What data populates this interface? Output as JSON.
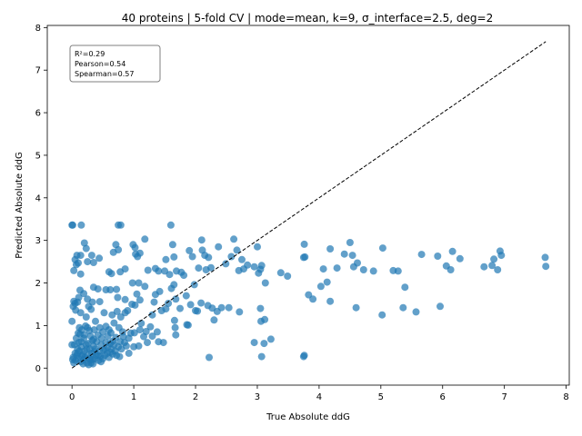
{
  "chart_data": {
    "type": "scatter",
    "title": "40 proteins | 5-fold CV | mode=mean, k=9, σ_interface=2.5, deg=2",
    "xlabel": "True Absolute ddG",
    "ylabel": "Predicted Absolute ddG",
    "xlim": [
      -0.4,
      8.05
    ],
    "ylim": [
      -0.4,
      8.05
    ],
    "xticks": [
      "0",
      "1",
      "2",
      "3",
      "4",
      "5",
      "6",
      "7",
      "8"
    ],
    "yticks": [
      "0",
      "1",
      "2",
      "3",
      "4",
      "5",
      "6",
      "7",
      "8"
    ],
    "stats": {
      "r2": "R²=0.29",
      "pearson": "Pearson=0.54",
      "spearman": "Spearman=0.57"
    },
    "stats_box_position": "top-left",
    "identity_line": {
      "from": [
        0,
        0
      ],
      "to": [
        7.67,
        7.67
      ],
      "style": "dashed"
    },
    "point_color": "#1f77b4",
    "points": [
      [
        0.0,
        3.36
      ],
      [
        0.01,
        3.36
      ],
      [
        0.15,
        3.36
      ],
      [
        0.75,
        3.36
      ],
      [
        0.79,
        3.36
      ],
      [
        1.6,
        3.36
      ],
      [
        0.14,
        2.65
      ],
      [
        0.08,
        2.65
      ],
      [
        0.05,
        2.55
      ],
      [
        0.07,
        2.43
      ],
      [
        0.1,
        2.47
      ],
      [
        0.03,
        2.29
      ],
      [
        0.14,
        2.21
      ],
      [
        0.2,
        2.94
      ],
      [
        0.23,
        2.81
      ],
      [
        0.25,
        2.5
      ],
      [
        0.32,
        2.65
      ],
      [
        0.35,
        2.48
      ],
      [
        0.44,
        2.58
      ],
      [
        0.6,
        2.26
      ],
      [
        0.64,
        2.22
      ],
      [
        0.67,
        2.72
      ],
      [
        0.71,
        2.9
      ],
      [
        0.75,
        2.78
      ],
      [
        0.78,
        2.26
      ],
      [
        0.86,
        2.33
      ],
      [
        0.99,
        2.9
      ],
      [
        1.02,
        2.83
      ],
      [
        1.03,
        2.68
      ],
      [
        1.06,
        2.62
      ],
      [
        1.1,
        2.7
      ],
      [
        1.18,
        3.03
      ],
      [
        1.23,
        2.3
      ],
      [
        1.35,
        2.34
      ],
      [
        1.4,
        2.28
      ],
      [
        1.5,
        2.28
      ],
      [
        1.52,
        2.55
      ],
      [
        1.58,
        2.2
      ],
      [
        1.63,
        2.9
      ],
      [
        1.65,
        2.61
      ],
      [
        1.69,
        2.28
      ],
      [
        1.77,
        2.25
      ],
      [
        1.81,
        2.18
      ],
      [
        1.9,
        2.76
      ],
      [
        1.95,
        2.62
      ],
      [
        2.05,
        2.35
      ],
      [
        2.1,
        3.01
      ],
      [
        2.11,
        2.77
      ],
      [
        2.15,
        2.65
      ],
      [
        2.17,
        2.31
      ],
      [
        2.21,
        2.6
      ],
      [
        2.25,
        2.36
      ],
      [
        2.37,
        2.85
      ],
      [
        2.49,
        2.45
      ],
      [
        2.58,
        2.62
      ],
      [
        2.62,
        3.03
      ],
      [
        2.67,
        2.77
      ],
      [
        2.7,
        2.29
      ],
      [
        2.75,
        2.55
      ],
      [
        2.78,
        2.33
      ],
      [
        2.84,
        2.42
      ],
      [
        2.95,
        2.38
      ],
      [
        3.0,
        2.85
      ],
      [
        3.02,
        2.23
      ],
      [
        3.05,
        2.32
      ],
      [
        3.07,
        2.41
      ],
      [
        3.13,
        2.0
      ],
      [
        3.38,
        2.24
      ],
      [
        3.49,
        2.16
      ],
      [
        3.76,
        2.91
      ],
      [
        3.77,
        2.61
      ],
      [
        4.07,
        2.33
      ],
      [
        4.18,
        2.8
      ],
      [
        4.29,
        2.35
      ],
      [
        4.41,
        2.68
      ],
      [
        4.5,
        2.95
      ],
      [
        4.54,
        2.65
      ],
      [
        4.56,
        2.38
      ],
      [
        4.62,
        2.47
      ],
      [
        4.72,
        2.31
      ],
      [
        4.88,
        2.28
      ],
      [
        5.03,
        2.82
      ],
      [
        5.2,
        2.29
      ],
      [
        5.28,
        2.28
      ],
      [
        5.66,
        2.67
      ],
      [
        5.92,
        2.63
      ],
      [
        6.06,
        2.4
      ],
      [
        6.13,
        2.31
      ],
      [
        6.16,
        2.74
      ],
      [
        6.28,
        2.57
      ],
      [
        6.67,
        2.38
      ],
      [
        6.8,
        2.41
      ],
      [
        6.83,
        2.56
      ],
      [
        6.89,
        2.31
      ],
      [
        6.93,
        2.75
      ],
      [
        6.95,
        2.65
      ],
      [
        7.66,
        2.6
      ],
      [
        7.67,
        2.39
      ],
      [
        3.75,
        2.6
      ],
      [
        3.83,
        1.72
      ],
      [
        3.9,
        1.62
      ],
      [
        4.03,
        1.92
      ],
      [
        4.13,
        2.02
      ],
      [
        4.18,
        1.57
      ],
      [
        4.6,
        1.42
      ],
      [
        5.02,
        1.25
      ],
      [
        5.36,
        1.42
      ],
      [
        5.39,
        1.9
      ],
      [
        5.57,
        1.32
      ],
      [
        5.96,
        1.45
      ],
      [
        2.71,
        1.32
      ],
      [
        2.95,
        0.6
      ],
      [
        3.05,
        1.4
      ],
      [
        3.06,
        1.1
      ],
      [
        3.12,
        1.14
      ],
      [
        3.11,
        0.58
      ],
      [
        3.22,
        0.68
      ],
      [
        3.07,
        0.27
      ],
      [
        3.76,
        0.3
      ],
      [
        3.75,
        0.27
      ],
      [
        2.22,
        0.25
      ],
      [
        2.0,
        1.35
      ],
      [
        2.03,
        1.34
      ],
      [
        2.09,
        1.53
      ],
      [
        2.2,
        1.47
      ],
      [
        2.27,
        1.41
      ],
      [
        2.3,
        1.13
      ],
      [
        2.35,
        1.33
      ],
      [
        2.42,
        1.42
      ],
      [
        2.54,
        1.42
      ],
      [
        1.86,
        1.02
      ],
      [
        1.88,
        1.01
      ],
      [
        1.67,
        0.95
      ],
      [
        1.68,
        0.78
      ],
      [
        1.66,
        1.12
      ],
      [
        1.61,
        1.87
      ],
      [
        1.65,
        1.96
      ],
      [
        1.52,
        1.39
      ],
      [
        1.45,
        1.35
      ],
      [
        1.4,
        0.62
      ],
      [
        1.48,
        0.6
      ],
      [
        1.38,
        0.85
      ],
      [
        1.3,
        1.25
      ],
      [
        1.27,
        0.97
      ],
      [
        1.2,
        0.86
      ],
      [
        1.16,
        0.74
      ],
      [
        1.08,
        0.52
      ],
      [
        1.0,
        0.5
      ],
      [
        0.9,
        1.35
      ],
      [
        0.86,
        1.61
      ],
      [
        0.97,
        1.5
      ],
      [
        1.02,
        1.48
      ],
      [
        1.05,
        1.74
      ],
      [
        1.08,
        2.0
      ],
      [
        0.98,
        2.0
      ],
      [
        1.1,
        1.6
      ],
      [
        1.18,
        1.92
      ],
      [
        1.33,
        1.55
      ],
      [
        1.35,
        1.73
      ],
      [
        1.42,
        1.8
      ],
      [
        1.56,
        1.52
      ],
      [
        1.68,
        1.62
      ],
      [
        1.75,
        1.4
      ],
      [
        1.85,
        1.7
      ],
      [
        1.92,
        1.49
      ],
      [
        1.98,
        1.96
      ],
      [
        0.72,
        1.85
      ],
      [
        0.74,
        1.66
      ],
      [
        0.73,
        1.33
      ],
      [
        0.79,
        1.2
      ],
      [
        0.86,
        1.3
      ],
      [
        0.62,
        1.84
      ],
      [
        0.55,
        1.84
      ],
      [
        0.52,
        1.3
      ],
      [
        0.45,
        1.56
      ],
      [
        0.42,
        1.86
      ],
      [
        0.35,
        1.9
      ],
      [
        0.33,
        1.55
      ],
      [
        0.27,
        1.45
      ],
      [
        0.25,
        1.62
      ],
      [
        0.19,
        1.75
      ],
      [
        0.13,
        1.83
      ],
      [
        0.11,
        1.66
      ],
      [
        0.09,
        1.55
      ],
      [
        0.05,
        1.52
      ],
      [
        0.03,
        1.57
      ],
      [
        0.02,
        1.45
      ],
      [
        0.06,
        1.36
      ],
      [
        0.0,
        1.1
      ],
      [
        0.14,
        1.3
      ],
      [
        0.23,
        1.2
      ],
      [
        0.31,
        1.38
      ],
      [
        0.38,
        1.1
      ],
      [
        0.65,
        1.25
      ],
      [
        0.68,
        1.06
      ],
      [
        0.63,
        0.83
      ],
      [
        0.76,
        0.95
      ],
      [
        0.83,
        0.74
      ],
      [
        0.66,
        0.63
      ],
      [
        0.71,
        0.72
      ],
      [
        0.77,
        0.27
      ],
      [
        0.62,
        0.37
      ],
      [
        0.53,
        0.45
      ],
      [
        0.47,
        0.55
      ],
      [
        0.42,
        0.78
      ],
      [
        0.36,
        0.9
      ],
      [
        0.33,
        0.65
      ],
      [
        0.28,
        0.88
      ],
      [
        0.26,
        0.58
      ],
      [
        0.22,
        0.99
      ],
      [
        0.19,
        0.7
      ],
      [
        0.16,
        0.9
      ],
      [
        0.13,
        0.8
      ],
      [
        0.11,
        0.6
      ],
      [
        0.09,
        0.45
      ],
      [
        0.07,
        0.7
      ],
      [
        0.05,
        0.35
      ],
      [
        0.04,
        0.55
      ],
      [
        0.02,
        0.25
      ],
      [
        0.0,
        0.55
      ],
      [
        0.01,
        0.2
      ],
      [
        0.03,
        0.12
      ],
      [
        0.06,
        0.18
      ],
      [
        0.08,
        0.3
      ],
      [
        0.1,
        0.22
      ],
      [
        0.12,
        0.4
      ],
      [
        0.14,
        0.15
      ],
      [
        0.15,
        0.5
      ],
      [
        0.17,
        0.32
      ],
      [
        0.18,
        0.1
      ],
      [
        0.2,
        0.4
      ],
      [
        0.21,
        0.25
      ],
      [
        0.23,
        0.55
      ],
      [
        0.24,
        0.12
      ],
      [
        0.26,
        0.3
      ],
      [
        0.27,
        0.08
      ],
      [
        0.29,
        0.45
      ],
      [
        0.3,
        0.2
      ],
      [
        0.32,
        0.35
      ],
      [
        0.34,
        0.1
      ],
      [
        0.35,
        0.52
      ],
      [
        0.37,
        0.22
      ],
      [
        0.39,
        0.3
      ],
      [
        0.4,
        0.62
      ],
      [
        0.43,
        0.18
      ],
      [
        0.44,
        0.4
      ],
      [
        0.46,
        0.28
      ],
      [
        0.48,
        0.7
      ],
      [
        0.5,
        0.22
      ],
      [
        0.51,
        0.42
      ],
      [
        0.53,
        0.3
      ],
      [
        0.55,
        0.6
      ],
      [
        0.57,
        0.35
      ],
      [
        0.58,
        0.5
      ],
      [
        0.6,
        0.25
      ],
      [
        0.62,
        0.58
      ],
      [
        0.64,
        0.45
      ],
      [
        0.66,
        0.33
      ],
      [
        0.68,
        0.55
      ],
      [
        0.7,
        0.4
      ],
      [
        0.72,
        0.3
      ],
      [
        0.75,
        0.5
      ],
      [
        0.78,
        0.62
      ],
      [
        0.8,
        0.45
      ],
      [
        0.82,
        0.85
      ],
      [
        0.85,
        0.6
      ],
      [
        0.88,
        0.52
      ],
      [
        0.92,
        0.7
      ],
      [
        0.95,
        0.82
      ],
      [
        0.15,
        0.62
      ],
      [
        0.2,
        0.78
      ],
      [
        0.25,
        0.95
      ],
      [
        0.3,
        0.75
      ],
      [
        0.35,
        0.68
      ],
      [
        0.12,
        0.95
      ],
      [
        0.1,
        0.82
      ],
      [
        0.24,
        0.45
      ],
      [
        0.28,
        0.22
      ],
      [
        0.31,
        0.12
      ],
      [
        0.19,
        0.2
      ],
      [
        0.16,
        0.28
      ],
      [
        0.09,
        0.35
      ],
      [
        0.45,
        0.95
      ],
      [
        0.5,
        0.85
      ],
      [
        0.55,
        0.98
      ],
      [
        0.58,
        0.75
      ],
      [
        0.6,
        0.9
      ],
      [
        0.42,
        0.3
      ],
      [
        0.38,
        0.45
      ],
      [
        0.47,
        0.15
      ],
      [
        0.33,
        0.2
      ],
      [
        0.36,
        0.38
      ],
      [
        1.1,
        0.9
      ],
      [
        1.12,
        1.05
      ],
      [
        1.22,
        0.6
      ],
      [
        1.3,
        0.75
      ],
      [
        0.92,
        0.35
      ],
      [
        1.01,
        0.83
      ]
    ]
  }
}
